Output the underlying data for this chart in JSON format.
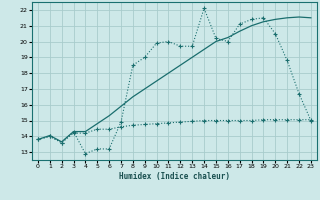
{
  "xlabel": "Humidex (Indice chaleur)",
  "bg_color": "#cde8e8",
  "grid_color": "#a8cccc",
  "line_color": "#1a6e6e",
  "xlim": [
    -0.5,
    23.5
  ],
  "ylim": [
    12.5,
    22.5
  ],
  "xticks": [
    0,
    1,
    2,
    3,
    4,
    5,
    6,
    7,
    8,
    9,
    10,
    11,
    12,
    13,
    14,
    15,
    16,
    17,
    18,
    19,
    20,
    21,
    22,
    23
  ],
  "yticks": [
    13,
    14,
    15,
    16,
    17,
    18,
    19,
    20,
    21,
    22
  ],
  "line1_x": [
    0,
    1,
    2,
    3,
    4,
    5,
    6,
    7,
    8,
    9,
    10,
    11,
    12,
    13,
    14,
    15,
    16,
    17,
    18,
    19,
    20,
    21,
    22,
    23
  ],
  "line1_y": [
    13.8,
    14.0,
    13.6,
    14.3,
    12.9,
    13.2,
    13.2,
    14.9,
    18.5,
    19.0,
    19.9,
    20.0,
    19.7,
    19.7,
    22.1,
    20.2,
    20.0,
    21.1,
    21.4,
    21.5,
    20.5,
    18.8,
    16.7,
    15.0
  ],
  "line2_x": [
    0,
    1,
    2,
    3,
    4,
    5,
    6,
    7,
    8,
    9,
    10,
    11,
    12,
    13,
    14,
    15,
    16,
    17,
    18,
    19,
    20,
    21,
    22,
    23
  ],
  "line2_y": [
    13.8,
    14.0,
    13.6,
    14.2,
    14.2,
    14.45,
    14.45,
    14.6,
    14.7,
    14.75,
    14.8,
    14.85,
    14.9,
    14.95,
    15.0,
    15.0,
    15.0,
    15.0,
    15.0,
    15.05,
    15.05,
    15.05,
    15.05,
    15.05
  ],
  "line3_x": [
    0,
    1,
    2,
    3,
    4,
    5,
    6,
    7,
    8,
    9,
    10,
    11,
    12,
    13,
    14,
    15,
    16,
    17,
    18,
    19,
    20,
    21,
    22,
    23
  ],
  "line3_y": [
    13.8,
    14.05,
    13.65,
    14.3,
    14.3,
    14.8,
    15.3,
    15.9,
    16.5,
    17.0,
    17.5,
    18.0,
    18.5,
    19.0,
    19.5,
    20.0,
    20.25,
    20.65,
    21.0,
    21.25,
    21.4,
    21.5,
    21.55,
    21.5
  ]
}
